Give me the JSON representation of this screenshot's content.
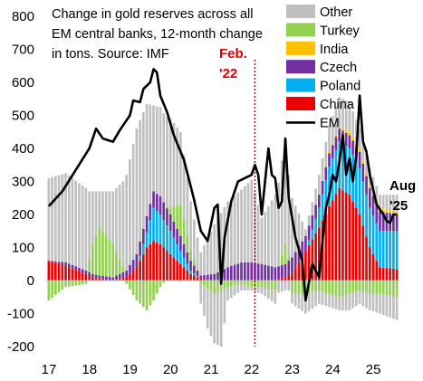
{
  "chart_data": {
    "type": "bar",
    "title_lines": [
      "Change in gold reserves across all",
      "EM central banks, 12-month change",
      "in tons. Source: IMF"
    ],
    "ylim": [
      -200,
      800
    ],
    "y_ticks": [
      "800",
      "700",
      "600",
      "500",
      "400",
      "300",
      "200",
      "100",
      "0",
      "-100",
      "-200"
    ],
    "x_ticks": [
      "17",
      "18",
      "19",
      "20",
      "21",
      "22",
      "23",
      "24",
      "25"
    ],
    "x_start": "2017-01",
    "x_end": "2025-08",
    "stacked_series": [
      {
        "name": "Other",
        "color": "#bfbfbf"
      },
      {
        "name": "Turkey",
        "color": "#92d050"
      },
      {
        "name": "India",
        "color": "#ffc000"
      },
      {
        "name": "Czech",
        "color": "#7030a0"
      },
      {
        "name": "Poland",
        "color": "#00b0f0"
      },
      {
        "name": "China",
        "color": "#ee0000"
      }
    ],
    "line_series": {
      "name": "EM",
      "color": "#000000"
    },
    "legend": [
      "Other",
      "Turkey",
      "India",
      "Czech",
      "Poland",
      "China",
      "EM"
    ],
    "legend_position": "top-right",
    "annotations": {
      "feb": {
        "lines": [
          "Feb.",
          "'22"
        ],
        "color": "#e00000",
        "x": "2022-02"
      },
      "aug": {
        "lines": [
          "Aug",
          "'25"
        ],
        "color": "#000000"
      }
    },
    "em_anchor_points": [
      [
        "2017-01",
        225
      ],
      [
        "2017-05",
        270
      ],
      [
        "2017-09",
        335
      ],
      [
        "2018-01",
        400
      ],
      [
        "2018-03",
        460
      ],
      [
        "2018-05",
        430
      ],
      [
        "2018-08",
        420
      ],
      [
        "2018-10",
        455
      ],
      [
        "2019-01",
        500
      ],
      [
        "2019-02",
        545
      ],
      [
        "2019-04",
        540
      ],
      [
        "2019-05",
        580
      ],
      [
        "2019-07",
        600
      ],
      [
        "2019-08",
        640
      ],
      [
        "2019-09",
        630
      ],
      [
        "2019-10",
        560
      ],
      [
        "2019-12",
        510
      ],
      [
        "2020-02",
        440
      ],
      [
        "2020-05",
        365
      ],
      [
        "2020-08",
        245
      ],
      [
        "2020-10",
        150
      ],
      [
        "2020-12",
        120
      ],
      [
        "2021-02",
        220
      ],
      [
        "2021-03",
        230
      ],
      [
        "2021-04",
        -10
      ],
      [
        "2021-05",
        130
      ],
      [
        "2021-07",
        240
      ],
      [
        "2021-09",
        300
      ],
      [
        "2021-11",
        310
      ],
      [
        "2022-01",
        320
      ],
      [
        "2022-02",
        350
      ],
      [
        "2022-03",
        320
      ],
      [
        "2022-04",
        200
      ],
      [
        "2022-06",
        400
      ],
      [
        "2022-07",
        320
      ],
      [
        "2022-08",
        310
      ],
      [
        "2022-09",
        220
      ],
      [
        "2022-10",
        240
      ],
      [
        "2022-11",
        430
      ],
      [
        "2022-12",
        250
      ],
      [
        "2023-02",
        130
      ],
      [
        "2023-04",
        60
      ],
      [
        "2023-05",
        -60
      ],
      [
        "2023-07",
        50
      ],
      [
        "2023-09",
        10
      ],
      [
        "2023-10",
        120
      ],
      [
        "2023-11",
        220
      ],
      [
        "2023-12",
        260
      ],
      [
        "2024-01",
        320
      ],
      [
        "2024-02",
        300
      ],
      [
        "2024-03",
        360
      ],
      [
        "2024-04",
        440
      ],
      [
        "2024-05",
        320
      ],
      [
        "2024-06",
        370
      ],
      [
        "2024-07",
        300
      ],
      [
        "2024-08",
        380
      ],
      [
        "2024-09",
        560
      ],
      [
        "2024-10",
        420
      ],
      [
        "2024-11",
        390
      ],
      [
        "2024-12",
        320
      ],
      [
        "2025-02",
        230
      ],
      [
        "2025-04",
        200
      ],
      [
        "2025-05",
        180
      ],
      [
        "2025-06",
        175
      ],
      [
        "2025-07",
        200
      ],
      [
        "2025-08",
        200
      ]
    ],
    "stack_anchor_points": [
      [
        "2017-01",
        60,
        0,
        0,
        0,
        0,
        250
      ],
      [
        "2017-06",
        45,
        0,
        10,
        0,
        0,
        270
      ],
      [
        "2017-12",
        20,
        0,
        10,
        0,
        0,
        250
      ],
      [
        "2018-02",
        10,
        0,
        10,
        0,
        0,
        160
      ],
      [
        "2018-04",
        5,
        0,
        10,
        0,
        0,
        110
      ],
      [
        "2018-08",
        0,
        0,
        10,
        0,
        0,
        160
      ],
      [
        "2018-12",
        10,
        0,
        20,
        0,
        0,
        290
      ],
      [
        "2019-03",
        40,
        0,
        40,
        0,
        0,
        380
      ],
      [
        "2019-06",
        100,
        45,
        50,
        0,
        0,
        340
      ],
      [
        "2019-08",
        120,
        100,
        50,
        0,
        0,
        260
      ],
      [
        "2019-10",
        110,
        90,
        55,
        0,
        0,
        270
      ],
      [
        "2020-01",
        80,
        70,
        50,
        0,
        0,
        270
      ],
      [
        "2020-04",
        50,
        40,
        45,
        0,
        0,
        220
      ],
      [
        "2020-07",
        20,
        10,
        30,
        0,
        0,
        150
      ],
      [
        "2020-10",
        5,
        0,
        10,
        0,
        0,
        70
      ],
      [
        "2021-02",
        0,
        0,
        20,
        0,
        0,
        150
      ],
      [
        "2021-06",
        0,
        0,
        40,
        0,
        0,
        200
      ],
      [
        "2021-10",
        0,
        0,
        55,
        0,
        0,
        220
      ],
      [
        "2022-01",
        0,
        0,
        55,
        0,
        0,
        250
      ],
      [
        "2022-04",
        0,
        0,
        50,
        0,
        0,
        140
      ],
      [
        "2022-08",
        0,
        0,
        40,
        0,
        0,
        220
      ],
      [
        "2022-11",
        10,
        0,
        40,
        0,
        0,
        320
      ],
      [
        "2023-01",
        20,
        0,
        50,
        0,
        0,
        180
      ],
      [
        "2023-05",
        90,
        0,
        45,
        0,
        0,
        20
      ],
      [
        "2023-09",
        160,
        60,
        40,
        0,
        0,
        60
      ],
      [
        "2023-12",
        225,
        120,
        40,
        5,
        0,
        80
      ],
      [
        "2024-03",
        280,
        140,
        40,
        5,
        0,
        90
      ],
      [
        "2024-06",
        260,
        140,
        40,
        10,
        0,
        90
      ],
      [
        "2024-09",
        200,
        140,
        50,
        10,
        0,
        60
      ],
      [
        "2024-12",
        100,
        120,
        60,
        10,
        0,
        50
      ],
      [
        "2025-03",
        40,
        110,
        60,
        10,
        0,
        40
      ],
      [
        "2025-08",
        35,
        115,
        50,
        10,
        0,
        50
      ]
    ],
    "turkey_negative_points": [
      [
        "2017-01",
        -60
      ],
      [
        "2017-06",
        -20
      ],
      [
        "2017-12",
        -10
      ],
      [
        "2018-02",
        90
      ],
      [
        "2018-04",
        145
      ],
      [
        "2018-08",
        100
      ],
      [
        "2018-12",
        -10
      ],
      [
        "2019-03",
        -60
      ],
      [
        "2019-06",
        -90
      ],
      [
        "2019-08",
        -60
      ],
      [
        "2019-10",
        -20
      ],
      [
        "2020-01",
        20
      ],
      [
        "2020-04",
        95
      ],
      [
        "2020-07",
        30
      ],
      [
        "2020-10",
        -10
      ],
      [
        "2021-02",
        -40
      ],
      [
        "2021-06",
        -20
      ],
      [
        "2021-10",
        -10
      ],
      [
        "2022-01",
        -20
      ],
      [
        "2022-04",
        -20
      ],
      [
        "2022-08",
        -30
      ],
      [
        "2022-11",
        60
      ],
      [
        "2023-01",
        -40
      ],
      [
        "2023-05",
        -40
      ],
      [
        "2023-09",
        -30
      ],
      [
        "2023-12",
        -40
      ],
      [
        "2024-03",
        -50
      ],
      [
        "2024-06",
        -40
      ],
      [
        "2024-09",
        -30
      ],
      [
        "2024-12",
        -40
      ],
      [
        "2025-03",
        -40
      ],
      [
        "2025-08",
        -50
      ]
    ],
    "other_negative_points": [
      [
        "2017-01",
        0
      ],
      [
        "2020-09",
        0
      ],
      [
        "2020-10",
        -60
      ],
      [
        "2020-12",
        -120
      ],
      [
        "2021-02",
        -150
      ],
      [
        "2021-04",
        -170
      ],
      [
        "2021-06",
        -40
      ],
      [
        "2021-10",
        -20
      ],
      [
        "2022-01",
        -10
      ],
      [
        "2022-04",
        -20
      ],
      [
        "2022-08",
        -40
      ],
      [
        "2022-11",
        -30
      ],
      [
        "2023-01",
        -30
      ],
      [
        "2023-05",
        -60
      ],
      [
        "2023-09",
        -40
      ],
      [
        "2023-12",
        -40
      ],
      [
        "2024-03",
        -40
      ],
      [
        "2024-06",
        -50
      ],
      [
        "2024-09",
        -40
      ],
      [
        "2024-12",
        -50
      ],
      [
        "2025-03",
        -60
      ],
      [
        "2025-08",
        -70
      ]
    ]
  }
}
